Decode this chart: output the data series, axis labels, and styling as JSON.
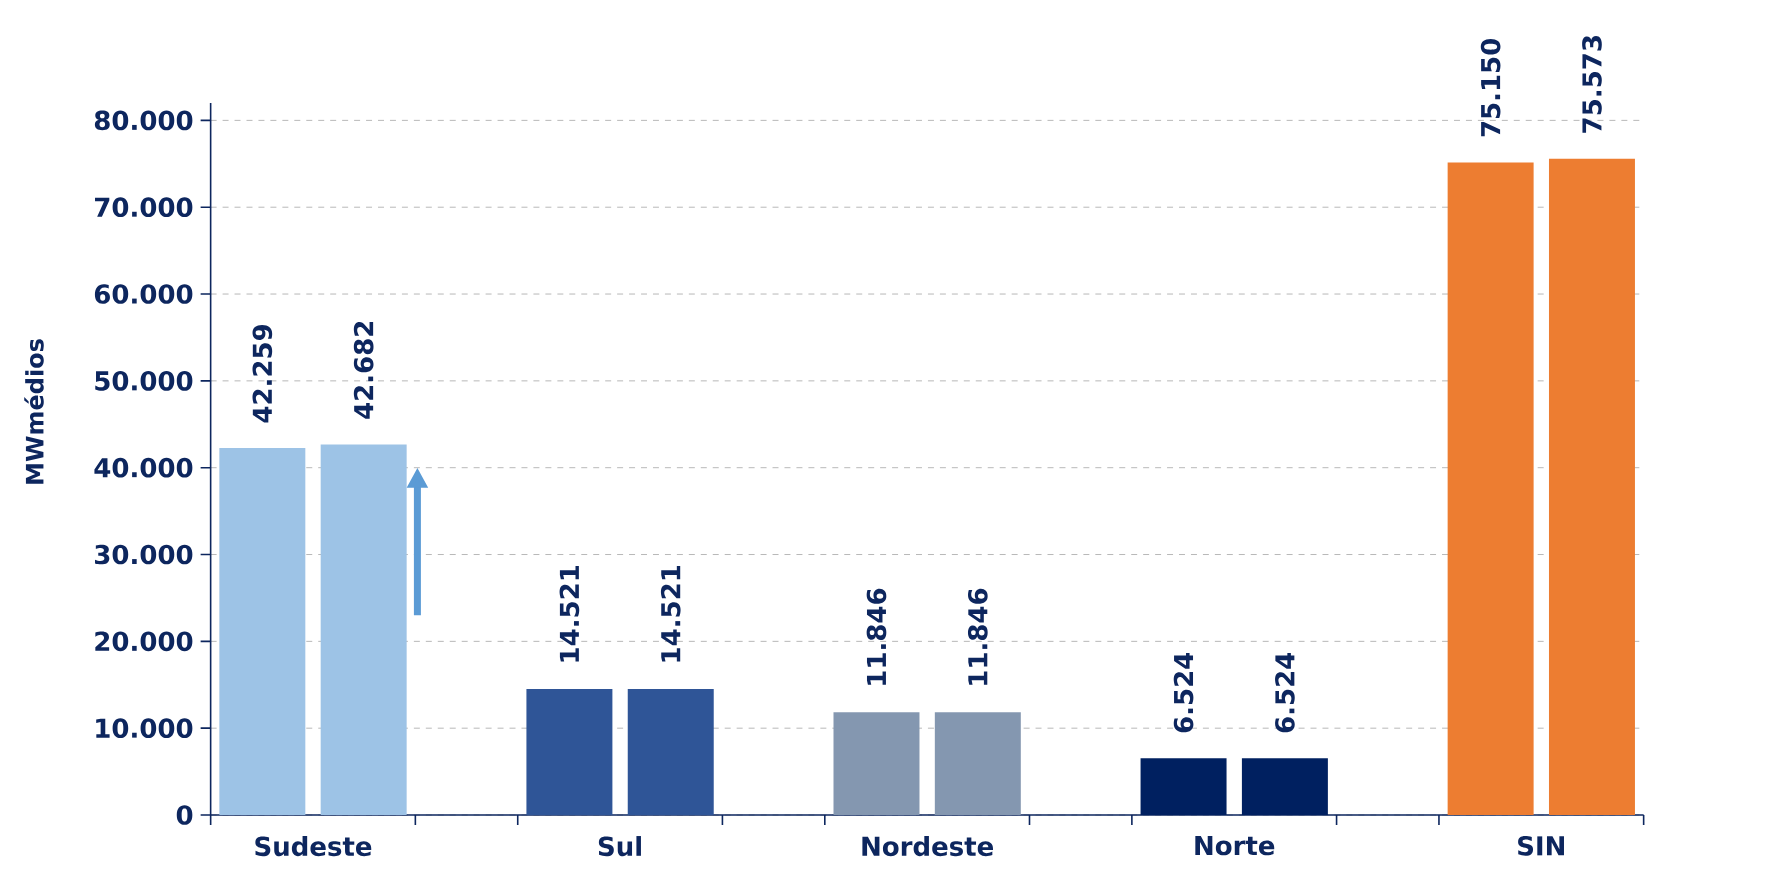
{
  "chart_data": {
    "type": "bar",
    "ylabel": "MWmédios",
    "categories": [
      "Sudeste",
      "Sul",
      "Nordeste",
      "Norte",
      "SIN"
    ],
    "series": [
      {
        "colors": [
          "#9dc3e6",
          "#2f5597",
          "#8497b0",
          "#002060",
          "#ed7d31"
        ],
        "values": [
          42259,
          14521,
          11846,
          6524,
          75150
        ],
        "value_labels": [
          "42.259",
          "14.521",
          "11.846",
          "6.524",
          "75.150"
        ]
      },
      {
        "colors": [
          "#9dc3e6",
          "#2f5597",
          "#8497b0",
          "#002060",
          "#ed7d31"
        ],
        "values": [
          42682,
          14521,
          11846,
          6524,
          75573
        ],
        "value_labels": [
          "42.682",
          "14.521",
          "11.846",
          "6.524",
          "75.573"
        ]
      }
    ],
    "ylim": [
      0,
      82000
    ],
    "yticks": [
      {
        "value": 0,
        "label": "0"
      },
      {
        "value": 10000,
        "label": "10.000"
      },
      {
        "value": 20000,
        "label": "20.000"
      },
      {
        "value": 30000,
        "label": "30.000"
      },
      {
        "value": 40000,
        "label": "40.000"
      },
      {
        "value": 50000,
        "label": "50.000"
      },
      {
        "value": 60000,
        "label": "60.000"
      },
      {
        "value": 70000,
        "label": "70.000"
      },
      {
        "value": 80000,
        "label": "80.000"
      }
    ],
    "grid": "y"
  }
}
